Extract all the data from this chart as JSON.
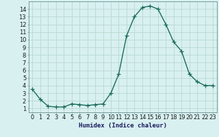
{
  "x": [
    0,
    1,
    2,
    3,
    4,
    5,
    6,
    7,
    8,
    9,
    10,
    11,
    12,
    13,
    14,
    15,
    16,
    17,
    18,
    19,
    20,
    21,
    22,
    23
  ],
  "y": [
    3.5,
    2.2,
    1.3,
    1.2,
    1.2,
    1.6,
    1.5,
    1.4,
    1.5,
    1.6,
    3.0,
    5.5,
    10.5,
    13.0,
    14.2,
    14.4,
    14.0,
    12.0,
    9.7,
    8.5,
    5.5,
    4.5,
    4.0,
    4.0
  ],
  "line_color": "#1a6b5a",
  "marker": "+",
  "markersize": 4,
  "linewidth": 1.0,
  "bg_color": "#d8f0f0",
  "grid_color": "#b8d8d0",
  "xlabel": "Humidex (Indice chaleur)",
  "xlabel_fontsize": 6.5,
  "ylabel_ticks": [
    1,
    2,
    3,
    4,
    5,
    6,
    7,
    8,
    9,
    10,
    11,
    12,
    13,
    14
  ],
  "xlim": [
    -0.5,
    23.5
  ],
  "ylim": [
    0.5,
    15.0
  ],
  "tick_fontsize": 6
}
